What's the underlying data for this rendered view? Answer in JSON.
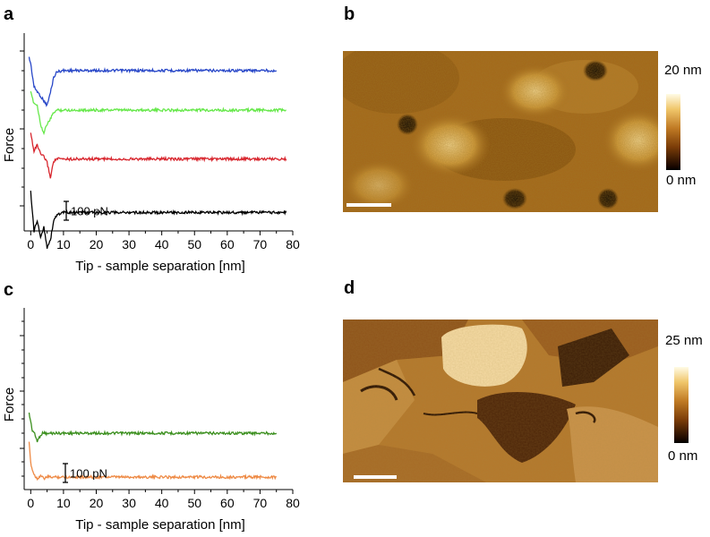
{
  "panels": {
    "a": {
      "letter": "a"
    },
    "b": {
      "letter": "b"
    },
    "c": {
      "letter": "c"
    },
    "d": {
      "letter": "d"
    }
  },
  "afm_b": {
    "max_label": "20 nm",
    "min_label": "0 nm"
  },
  "afm_d": {
    "max_label": "25 nm",
    "min_label": "0 nm"
  },
  "colors": {
    "blue": "#2847c8",
    "green": "#66e84a",
    "red": "#d8262e",
    "black": "#000000",
    "darkgreen": "#3b8f1e",
    "orange": "#ee8a45"
  },
  "chart_data": [
    {
      "id": "a",
      "type": "line",
      "title": "",
      "xlabel": "Tip - sample separation [nm]",
      "ylabel": "Force",
      "xlim": [
        -2,
        80
      ],
      "xticks": [
        0,
        10,
        20,
        30,
        40,
        50,
        60,
        70,
        80
      ],
      "scalebar_label": "100  pN",
      "yticks_labeled": false,
      "series": [
        {
          "color": "blue",
          "x": [
            -0.5,
            0,
            0.5,
            1,
            2,
            3,
            4,
            5,
            6,
            7,
            8,
            10,
            75
          ],
          "y": [
            45,
            40,
            30,
            20,
            16,
            12,
            8,
            4,
            15,
            28,
            33,
            34,
            34
          ]
        },
        {
          "color": "green",
          "x": [
            0,
            1,
            2,
            3,
            4,
            5,
            6,
            7,
            8,
            10,
            78
          ],
          "y": [
            15,
            6,
            4,
            -12,
            -20,
            -12,
            -8,
            -2,
            0,
            0,
            0
          ]
        },
        {
          "color": "red",
          "x": [
            0,
            1,
            2,
            3,
            4,
            5,
            6,
            7,
            8,
            10,
            78
          ],
          "y": [
            -20,
            -35,
            -30,
            -38,
            -40,
            -45,
            -58,
            -44,
            -42,
            -42,
            -42
          ]
        },
        {
          "color": "black",
          "x": [
            0,
            0.5,
            1,
            2,
            3,
            4,
            5,
            6,
            7,
            8,
            10,
            78
          ],
          "y": [
            -70,
            -88,
            -104,
            -95,
            -110,
            -100,
            -118,
            -112,
            -95,
            -90,
            -88,
            -88
          ]
        }
      ]
    },
    {
      "id": "c",
      "type": "line",
      "title": "",
      "xlabel": "Tip - sample separation [nm]",
      "ylabel": "Force",
      "xlim": [
        -2,
        80
      ],
      "xticks": [
        0,
        10,
        20,
        30,
        40,
        50,
        60,
        70,
        80
      ],
      "scalebar_label": "100  pN",
      "yticks_labeled": false,
      "series": [
        {
          "color": "darkgreen",
          "x": [
            -0.5,
            0,
            0.5,
            1,
            2,
            3,
            4,
            5,
            6,
            8,
            75
          ],
          "y": [
            33,
            24,
            14,
            12,
            2,
            9,
            12,
            10,
            11,
            11,
            11
          ]
        },
        {
          "color": "orange",
          "x": [
            -0.5,
            0,
            0.5,
            1,
            2,
            3,
            4,
            5,
            6,
            8,
            75
          ],
          "y": [
            0,
            -22,
            -30,
            -35,
            -40,
            -36,
            -40,
            -38,
            -38,
            -38,
            -38
          ]
        }
      ]
    }
  ]
}
